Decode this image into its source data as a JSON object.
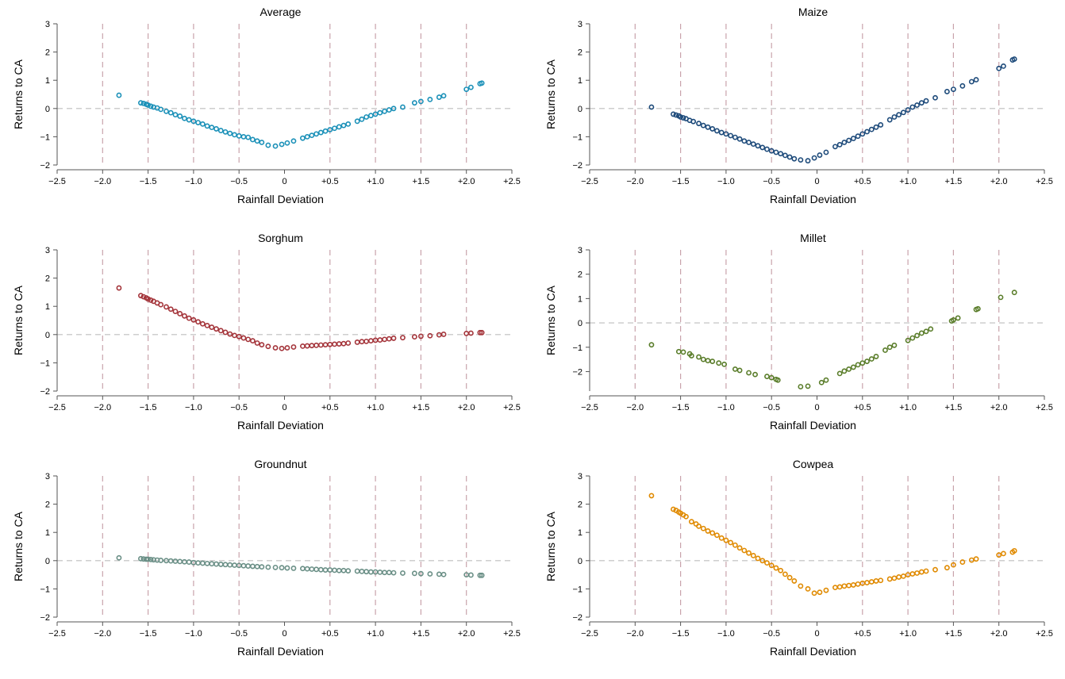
{
  "figure": {
    "shared": {
      "xlabel": "Rainfall Deviation",
      "ylabel": "Returns to CA",
      "x_ticks": [
        -2.5,
        -2.0,
        -1.5,
        -1.0,
        -0.5,
        0,
        0.5,
        1.0,
        1.5,
        2.0,
        2.5
      ],
      "x_tick_labels": [
        "−2.5",
        "−2.0",
        "−1.5",
        "−1.0",
        "−0.5",
        "0",
        "+0.5",
        "+1.0",
        "+1.5",
        "+2.0",
        "+2.5"
      ],
      "y_ticks": [
        -2,
        -1,
        0,
        1,
        2,
        3
      ],
      "y_tick_labels": [
        "−2",
        "−1",
        "0",
        "1",
        "2",
        "3"
      ],
      "vlines": [
        -2.0,
        -1.5,
        -1.0,
        -0.5,
        0.5,
        1.0,
        1.5,
        2.0
      ],
      "vline_color": "#c9a3ab",
      "hline_color": "#bdbdbd"
    }
  },
  "chart_data": [
    {
      "type": "scatter",
      "title": "Average",
      "xlabel": "Rainfall Deviation",
      "ylabel": "Returns to CA",
      "xlim": [
        -2.5,
        2.5
      ],
      "ylim": [
        -2,
        3
      ],
      "color": "#1a90b8",
      "x": [
        -1.82,
        -1.58,
        -1.55,
        -1.52,
        -1.5,
        -1.47,
        -1.44,
        -1.4,
        -1.36,
        -1.3,
        -1.25,
        -1.2,
        -1.15,
        -1.1,
        -1.05,
        -1.0,
        -0.95,
        -0.9,
        -0.85,
        -0.8,
        -0.75,
        -0.7,
        -0.65,
        -0.6,
        -0.55,
        -0.5,
        -0.45,
        -0.4,
        -0.35,
        -0.3,
        -0.25,
        -0.18,
        -0.1,
        -0.03,
        0.03,
        0.1,
        0.2,
        0.25,
        0.3,
        0.35,
        0.4,
        0.45,
        0.5,
        0.55,
        0.6,
        0.65,
        0.7,
        0.8,
        0.85,
        0.9,
        0.95,
        1.0,
        1.05,
        1.1,
        1.15,
        1.2,
        1.3,
        1.43,
        1.5,
        1.6,
        1.7,
        1.75,
        2.0,
        2.05,
        2.15,
        2.17
      ],
      "y": [
        0.47,
        0.2,
        0.18,
        0.15,
        0.12,
        0.08,
        0.05,
        0.02,
        -0.03,
        -0.1,
        -0.15,
        -0.22,
        -0.27,
        -0.35,
        -0.4,
        -0.45,
        -0.5,
        -0.55,
        -0.62,
        -0.67,
        -0.72,
        -0.78,
        -0.83,
        -0.88,
        -0.93,
        -0.97,
        -1.0,
        -1.02,
        -1.1,
        -1.15,
        -1.2,
        -1.3,
        -1.33,
        -1.27,
        -1.22,
        -1.15,
        -1.05,
        -1.0,
        -0.95,
        -0.9,
        -0.85,
        -0.8,
        -0.75,
        -0.7,
        -0.65,
        -0.6,
        -0.55,
        -0.45,
        -0.38,
        -0.3,
        -0.25,
        -0.2,
        -0.15,
        -0.1,
        -0.05,
        0.0,
        0.05,
        0.2,
        0.25,
        0.32,
        0.4,
        0.45,
        0.68,
        0.75,
        0.88,
        0.9
      ]
    },
    {
      "type": "scatter",
      "title": "Maize",
      "xlabel": "Rainfall Deviation",
      "ylabel": "Returns to CA",
      "xlim": [
        -2.5,
        2.5
      ],
      "ylim": [
        -2,
        3
      ],
      "color": "#1d4a7a",
      "x": [
        -1.82,
        -1.58,
        -1.55,
        -1.52,
        -1.5,
        -1.47,
        -1.44,
        -1.4,
        -1.36,
        -1.3,
        -1.25,
        -1.2,
        -1.15,
        -1.1,
        -1.05,
        -1.0,
        -0.95,
        -0.9,
        -0.85,
        -0.8,
        -0.75,
        -0.7,
        -0.65,
        -0.6,
        -0.55,
        -0.5,
        -0.45,
        -0.4,
        -0.35,
        -0.3,
        -0.25,
        -0.18,
        -0.1,
        -0.03,
        0.03,
        0.1,
        0.2,
        0.25,
        0.3,
        0.35,
        0.4,
        0.45,
        0.5,
        0.55,
        0.6,
        0.65,
        0.7,
        0.8,
        0.85,
        0.9,
        0.95,
        1.0,
        1.05,
        1.1,
        1.15,
        1.2,
        1.3,
        1.43,
        1.5,
        1.6,
        1.7,
        1.75,
        2.0,
        2.05,
        2.15,
        2.17
      ],
      "y": [
        0.05,
        -0.2,
        -0.23,
        -0.26,
        -0.3,
        -0.33,
        -0.36,
        -0.42,
        -0.46,
        -0.53,
        -0.6,
        -0.66,
        -0.72,
        -0.79,
        -0.85,
        -0.9,
        -0.96,
        -1.02,
        -1.08,
        -1.15,
        -1.2,
        -1.26,
        -1.32,
        -1.38,
        -1.44,
        -1.5,
        -1.55,
        -1.6,
        -1.66,
        -1.72,
        -1.78,
        -1.82,
        -1.85,
        -1.75,
        -1.65,
        -1.55,
        -1.35,
        -1.28,
        -1.2,
        -1.13,
        -1.06,
        -0.98,
        -0.9,
        -0.82,
        -0.74,
        -0.66,
        -0.58,
        -0.4,
        -0.3,
        -0.22,
        -0.14,
        -0.05,
        0.05,
        0.12,
        0.2,
        0.27,
        0.38,
        0.6,
        0.68,
        0.8,
        0.95,
        1.02,
        1.42,
        1.5,
        1.72,
        1.75
      ]
    },
    {
      "type": "scatter",
      "title": "Sorghum",
      "xlabel": "Rainfall Deviation",
      "ylabel": "Returns to CA",
      "xlim": [
        -2.5,
        2.5
      ],
      "ylim": [
        -2,
        3
      ],
      "color": "#a4343a",
      "x": [
        -1.82,
        -1.58,
        -1.55,
        -1.52,
        -1.5,
        -1.47,
        -1.44,
        -1.4,
        -1.36,
        -1.3,
        -1.25,
        -1.2,
        -1.15,
        -1.1,
        -1.05,
        -1.0,
        -0.95,
        -0.9,
        -0.85,
        -0.8,
        -0.75,
        -0.7,
        -0.65,
        -0.6,
        -0.55,
        -0.5,
        -0.45,
        -0.4,
        -0.35,
        -0.3,
        -0.25,
        -0.18,
        -0.1,
        -0.03,
        0.03,
        0.1,
        0.2,
        0.25,
        0.3,
        0.35,
        0.4,
        0.45,
        0.5,
        0.55,
        0.6,
        0.65,
        0.7,
        0.8,
        0.85,
        0.9,
        0.95,
        1.0,
        1.05,
        1.1,
        1.15,
        1.2,
        1.3,
        1.43,
        1.5,
        1.6,
        1.7,
        1.75,
        2.0,
        2.05,
        2.15,
        2.17
      ],
      "y": [
        1.65,
        1.38,
        1.34,
        1.3,
        1.26,
        1.22,
        1.18,
        1.12,
        1.06,
        0.98,
        0.9,
        0.82,
        0.74,
        0.66,
        0.58,
        0.52,
        0.45,
        0.38,
        0.32,
        0.26,
        0.2,
        0.14,
        0.08,
        0.02,
        -0.03,
        -0.07,
        -0.12,
        -0.17,
        -0.22,
        -0.3,
        -0.36,
        -0.42,
        -0.47,
        -0.49,
        -0.47,
        -0.44,
        -0.41,
        -0.4,
        -0.39,
        -0.38,
        -0.37,
        -0.36,
        -0.35,
        -0.34,
        -0.33,
        -0.32,
        -0.3,
        -0.27,
        -0.25,
        -0.24,
        -0.22,
        -0.2,
        -0.19,
        -0.17,
        -0.15,
        -0.13,
        -0.11,
        -0.08,
        -0.06,
        -0.04,
        -0.01,
        0.01,
        0.04,
        0.05,
        0.07,
        0.07
      ]
    },
    {
      "type": "scatter",
      "title": "Millet",
      "xlabel": "Rainfall Deviation",
      "ylabel": "Returns to CA",
      "xlim": [
        -2.5,
        2.5
      ],
      "ylim": [
        -2.8,
        3
      ],
      "color": "#5a7d2a",
      "x": [
        -1.82,
        -1.52,
        -1.47,
        -1.4,
        -1.38,
        -1.3,
        -1.25,
        -1.2,
        -1.15,
        -1.08,
        -1.02,
        -0.9,
        -0.85,
        -0.75,
        -0.68,
        -0.55,
        -0.5,
        -0.45,
        -0.43,
        -0.18,
        -0.1,
        0.05,
        0.1,
        0.25,
        0.3,
        0.35,
        0.4,
        0.45,
        0.5,
        0.55,
        0.6,
        0.65,
        0.75,
        0.8,
        0.85,
        1.0,
        1.05,
        1.1,
        1.15,
        1.2,
        1.25,
        1.48,
        1.5,
        1.55,
        1.75,
        1.77,
        2.02,
        2.17
      ],
      "y": [
        -0.9,
        -1.18,
        -1.2,
        -1.27,
        -1.35,
        -1.4,
        -1.5,
        -1.55,
        -1.58,
        -1.65,
        -1.7,
        -1.9,
        -1.95,
        -2.05,
        -2.12,
        -2.2,
        -2.25,
        -2.32,
        -2.35,
        -2.62,
        -2.6,
        -2.45,
        -2.35,
        -2.08,
        -1.98,
        -1.9,
        -1.82,
        -1.72,
        -1.65,
        -1.58,
        -1.48,
        -1.38,
        -1.12,
        -1.0,
        -0.92,
        -0.72,
        -0.62,
        -0.52,
        -0.42,
        -0.35,
        -0.25,
        0.08,
        0.12,
        0.2,
        0.55,
        0.58,
        1.05,
        1.25
      ]
    },
    {
      "type": "scatter",
      "title": "Groundnut",
      "xlabel": "Rainfall Deviation",
      "ylabel": "Returns to CA",
      "xlim": [
        -2.5,
        2.5
      ],
      "ylim": [
        -2,
        3
      ],
      "color": "#6a8f86",
      "x": [
        -1.82,
        -1.58,
        -1.55,
        -1.52,
        -1.5,
        -1.47,
        -1.44,
        -1.4,
        -1.36,
        -1.3,
        -1.25,
        -1.2,
        -1.15,
        -1.1,
        -1.05,
        -1.0,
        -0.95,
        -0.9,
        -0.85,
        -0.8,
        -0.75,
        -0.7,
        -0.65,
        -0.6,
        -0.55,
        -0.5,
        -0.45,
        -0.4,
        -0.35,
        -0.3,
        -0.25,
        -0.18,
        -0.1,
        -0.03,
        0.03,
        0.1,
        0.2,
        0.25,
        0.3,
        0.35,
        0.4,
        0.45,
        0.5,
        0.55,
        0.6,
        0.65,
        0.7,
        0.8,
        0.85,
        0.9,
        0.95,
        1.0,
        1.05,
        1.1,
        1.15,
        1.2,
        1.3,
        1.43,
        1.5,
        1.6,
        1.7,
        1.75,
        2.0,
        2.05,
        2.15,
        2.17
      ],
      "y": [
        0.1,
        0.07,
        0.06,
        0.05,
        0.05,
        0.04,
        0.03,
        0.02,
        0.01,
        0.0,
        -0.01,
        -0.02,
        -0.03,
        -0.04,
        -0.05,
        -0.07,
        -0.08,
        -0.09,
        -0.1,
        -0.11,
        -0.12,
        -0.13,
        -0.14,
        -0.15,
        -0.16,
        -0.17,
        -0.18,
        -0.19,
        -0.2,
        -0.21,
        -0.22,
        -0.23,
        -0.24,
        -0.25,
        -0.26,
        -0.27,
        -0.28,
        -0.29,
        -0.3,
        -0.31,
        -0.32,
        -0.33,
        -0.33,
        -0.34,
        -0.35,
        -0.35,
        -0.36,
        -0.37,
        -0.38,
        -0.39,
        -0.4,
        -0.4,
        -0.41,
        -0.42,
        -0.42,
        -0.43,
        -0.44,
        -0.45,
        -0.46,
        -0.47,
        -0.48,
        -0.49,
        -0.5,
        -0.51,
        -0.52,
        -0.52
      ]
    },
    {
      "type": "scatter",
      "title": "Cowpea",
      "xlabel": "Rainfall Deviation",
      "ylabel": "Returns to CA",
      "xlim": [
        -2.5,
        2.5
      ],
      "ylim": [
        -2,
        3
      ],
      "color": "#e08a00",
      "x": [
        -1.82,
        -1.58,
        -1.55,
        -1.52,
        -1.5,
        -1.47,
        -1.44,
        -1.38,
        -1.33,
        -1.3,
        -1.25,
        -1.2,
        -1.15,
        -1.1,
        -1.05,
        -1.0,
        -0.95,
        -0.9,
        -0.85,
        -0.8,
        -0.75,
        -0.7,
        -0.65,
        -0.6,
        -0.55,
        -0.5,
        -0.45,
        -0.4,
        -0.35,
        -0.3,
        -0.25,
        -0.18,
        -0.1,
        -0.03,
        0.03,
        0.1,
        0.2,
        0.25,
        0.3,
        0.35,
        0.4,
        0.45,
        0.5,
        0.55,
        0.6,
        0.65,
        0.7,
        0.8,
        0.85,
        0.9,
        0.95,
        1.0,
        1.05,
        1.1,
        1.15,
        1.2,
        1.3,
        1.43,
        1.5,
        1.6,
        1.7,
        1.75,
        2.0,
        2.05,
        2.15,
        2.17
      ],
      "y": [
        2.3,
        1.82,
        1.78,
        1.72,
        1.68,
        1.62,
        1.56,
        1.38,
        1.3,
        1.22,
        1.14,
        1.05,
        0.98,
        0.9,
        0.8,
        0.72,
        0.64,
        0.55,
        0.45,
        0.36,
        0.27,
        0.18,
        0.08,
        0.0,
        -0.08,
        -0.17,
        -0.26,
        -0.35,
        -0.48,
        -0.6,
        -0.72,
        -0.9,
        -1.0,
        -1.15,
        -1.12,
        -1.05,
        -0.95,
        -0.93,
        -0.9,
        -0.88,
        -0.86,
        -0.83,
        -0.8,
        -0.78,
        -0.75,
        -0.72,
        -0.7,
        -0.65,
        -0.62,
        -0.58,
        -0.55,
        -0.5,
        -0.47,
        -0.44,
        -0.4,
        -0.37,
        -0.32,
        -0.25,
        -0.15,
        -0.05,
        0.02,
        0.06,
        0.2,
        0.25,
        0.3,
        0.35
      ]
    }
  ]
}
